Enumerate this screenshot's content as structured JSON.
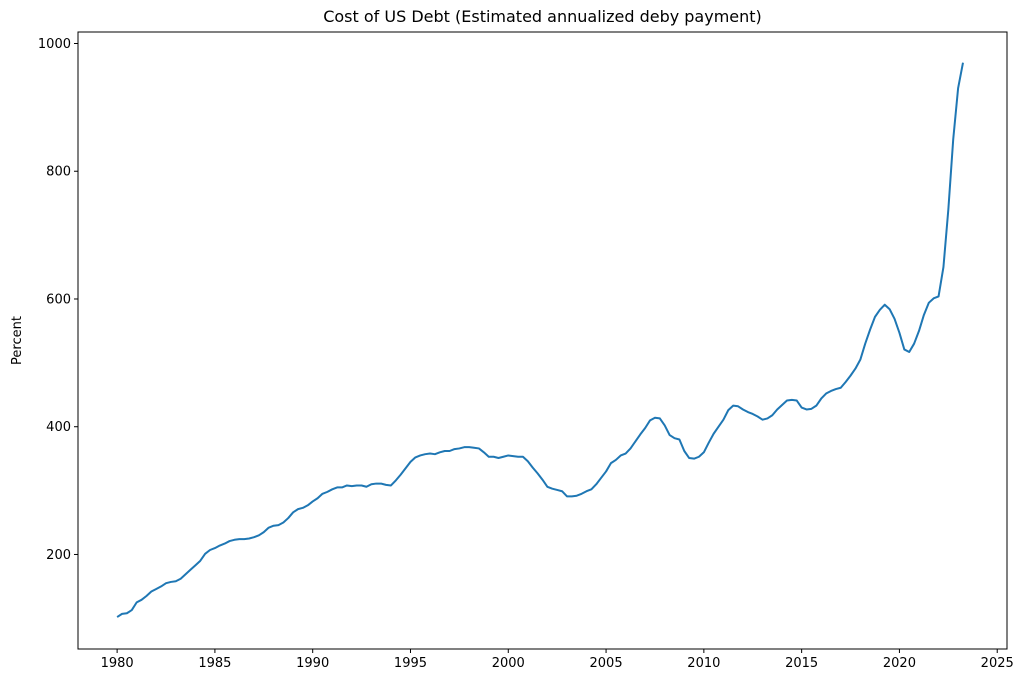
{
  "chart_data": {
    "type": "line",
    "title": "Cost of US Debt (Estimated annualized deby payment)",
    "xlabel": "",
    "ylabel": "Percent",
    "xlim": [
      1978.0,
      2025.5
    ],
    "ylim": [
      52,
      1018
    ],
    "x_ticks": [
      1980,
      1985,
      1990,
      1995,
      2000,
      2005,
      2010,
      2015,
      2020,
      2025
    ],
    "y_ticks": [
      200,
      400,
      600,
      800,
      1000
    ],
    "grid": false,
    "legend": "none",
    "series_color": "#1f77b4",
    "series": [
      {
        "x": [
          1980.0,
          1980.25,
          1980.5,
          1980.75,
          1981.0,
          1981.25,
          1981.5,
          1981.75,
          1982.0,
          1982.25,
          1982.5,
          1982.75,
          1983.0,
          1983.25,
          1983.5,
          1983.75,
          1984.0,
          1984.25,
          1984.5,
          1984.75,
          1985.0,
          1985.25,
          1985.5,
          1985.75,
          1986.0,
          1986.25,
          1986.5,
          1986.75,
          1987.0,
          1987.25,
          1987.5,
          1987.75,
          1988.0,
          1988.25,
          1988.5,
          1988.75,
          1989.0,
          1989.25,
          1989.5,
          1989.75,
          1990.0,
          1990.25,
          1990.5,
          1990.75,
          1991.0,
          1991.25,
          1991.5,
          1991.75,
          1992.0,
          1992.25,
          1992.5,
          1992.75,
          1993.0,
          1993.25,
          1993.5,
          1993.75,
          1994.0,
          1994.25,
          1994.5,
          1994.75,
          1995.0,
          1995.25,
          1995.5,
          1995.75,
          1996.0,
          1996.25,
          1996.5,
          1996.75,
          1997.0,
          1997.25,
          1997.5,
          1997.75,
          1998.0,
          1998.25,
          1998.5,
          1998.75,
          1999.0,
          1999.25,
          1999.5,
          1999.75,
          2000.0,
          2000.25,
          2000.5,
          2000.75,
          2001.0,
          2001.25,
          2001.5,
          2001.75,
          2002.0,
          2002.25,
          2002.5,
          2002.75,
          2003.0,
          2003.25,
          2003.5,
          2003.75,
          2004.0,
          2004.25,
          2004.5,
          2004.75,
          2005.0,
          2005.25,
          2005.5,
          2005.75,
          2006.0,
          2006.25,
          2006.5,
          2006.75,
          2007.0,
          2007.25,
          2007.5,
          2007.75,
          2008.0,
          2008.25,
          2008.5,
          2008.75,
          2009.0,
          2009.25,
          2009.5,
          2009.75,
          2010.0,
          2010.25,
          2010.5,
          2010.75,
          2011.0,
          2011.25,
          2011.5,
          2011.75,
          2012.0,
          2012.25,
          2012.5,
          2012.75,
          2013.0,
          2013.25,
          2013.5,
          2013.75,
          2014.0,
          2014.25,
          2014.5,
          2014.75,
          2015.0,
          2015.25,
          2015.5,
          2015.75,
          2016.0,
          2016.25,
          2016.5,
          2016.75,
          2017.0,
          2017.25,
          2017.5,
          2017.75,
          2018.0,
          2018.25,
          2018.5,
          2018.75,
          2019.0,
          2019.25,
          2019.5,
          2019.75,
          2020.0,
          2020.25,
          2020.5,
          2020.75,
          2021.0,
          2021.25,
          2021.5,
          2021.75,
          2022.0,
          2022.25,
          2022.5,
          2022.75,
          2023.0,
          2023.25
        ],
        "values": [
          102,
          107,
          108,
          113,
          125,
          129,
          135,
          142,
          146,
          150,
          155,
          157,
          158,
          162,
          169,
          176,
          183,
          190,
          201,
          207,
          210,
          214,
          217,
          221,
          223,
          224,
          224,
          225,
          227,
          230,
          235,
          242,
          245,
          246,
          250,
          257,
          266,
          271,
          273,
          277,
          283,
          288,
          295,
          298,
          302,
          305,
          305,
          308,
          307,
          308,
          308,
          306,
          310,
          311,
          311,
          309,
          308,
          316,
          325,
          335,
          345,
          352,
          355,
          357,
          358,
          357,
          360,
          362,
          362,
          365,
          366,
          368,
          368,
          367,
          366,
          360,
          353,
          353,
          351,
          353,
          355,
          354,
          353,
          353,
          346,
          336,
          327,
          317,
          306,
          303,
          301,
          299,
          291,
          291,
          292,
          295,
          299,
          302,
          310,
          320,
          330,
          343,
          348,
          355,
          358,
          366,
          377,
          388,
          398,
          410,
          414,
          413,
          402,
          387,
          382,
          380,
          362,
          351,
          350,
          353,
          360,
          375,
          389,
          400,
          411,
          426,
          433,
          432,
          427,
          423,
          420,
          416,
          411,
          413,
          418,
          427,
          434,
          441,
          442,
          441,
          430,
          427,
          428,
          433,
          444,
          452,
          456,
          459,
          461,
          470,
          480,
          491,
          505,
          530,
          552,
          572,
          583,
          591,
          584,
          569,
          547,
          521,
          517,
          530,
          550,
          575,
          594,
          601,
          604,
          650,
          740,
          850,
          930,
          970
        ]
      }
    ]
  }
}
